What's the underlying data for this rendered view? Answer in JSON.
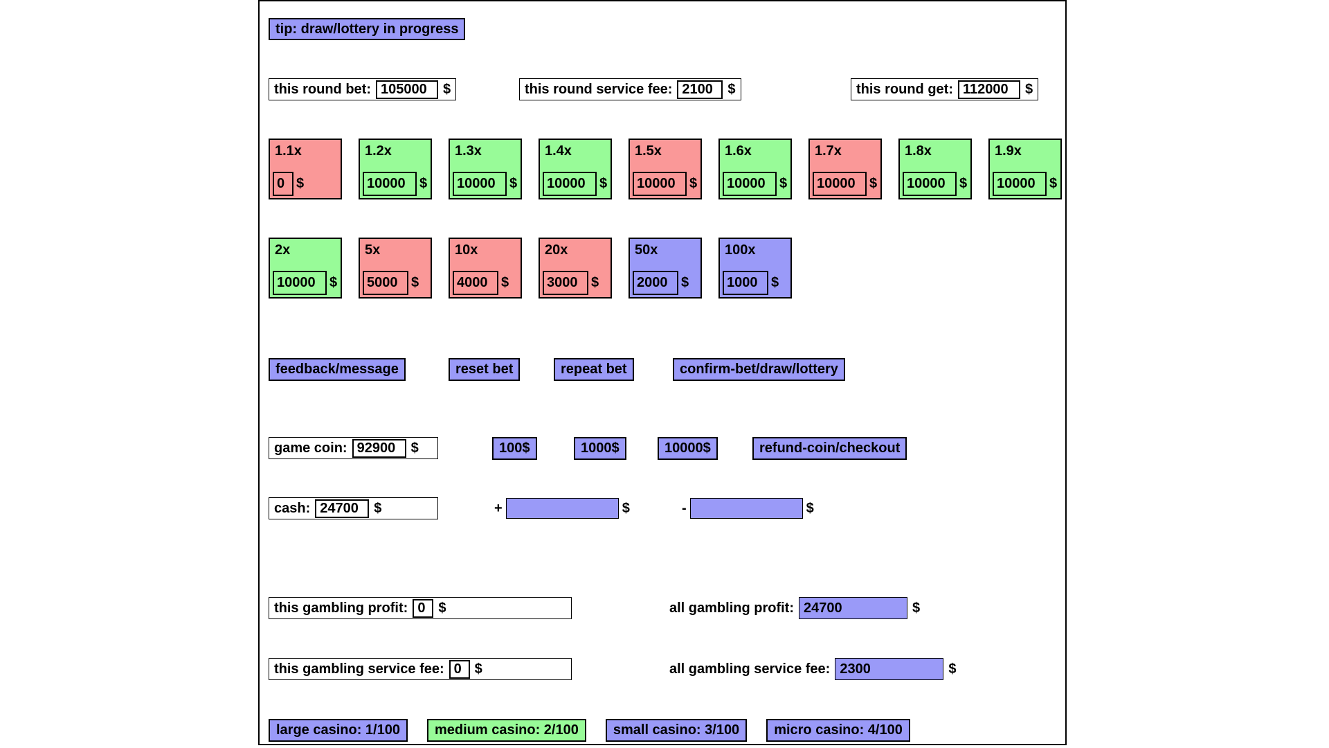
{
  "colors": {
    "purple": "#9a9af8",
    "green": "#98fb98",
    "red": "#fa9898"
  },
  "tip": {
    "label": "tip: draw/lottery in progress"
  },
  "round_info": [
    {
      "label": "this round bet:",
      "value": "105000",
      "currency": "$"
    },
    {
      "label": "this round service fee:",
      "value": "2100",
      "currency": "$"
    },
    {
      "label": "this round get:",
      "value": "112000",
      "currency": "$"
    }
  ],
  "bet_tiles_row1": [
    {
      "label": "1.1x",
      "value": "0",
      "currency": "$",
      "color": "red"
    },
    {
      "label": "1.2x",
      "value": "10000",
      "currency": "$",
      "color": "green"
    },
    {
      "label": "1.3x",
      "value": "10000",
      "currency": "$",
      "color": "green"
    },
    {
      "label": "1.4x",
      "value": "10000",
      "currency": "$",
      "color": "green"
    },
    {
      "label": "1.5x",
      "value": "10000",
      "currency": "$",
      "color": "red"
    },
    {
      "label": "1.6x",
      "value": "10000",
      "currency": "$",
      "color": "green"
    },
    {
      "label": "1.7x",
      "value": "10000",
      "currency": "$",
      "color": "red"
    },
    {
      "label": "1.8x",
      "value": "10000",
      "currency": "$",
      "color": "green"
    },
    {
      "label": "1.9x",
      "value": "10000",
      "currency": "$",
      "color": "green"
    }
  ],
  "bet_tiles_row2": [
    {
      "label": "2x",
      "value": "10000",
      "currency": "$",
      "color": "green"
    },
    {
      "label": "5x",
      "value": "5000",
      "currency": "$",
      "color": "red"
    },
    {
      "label": "10x",
      "value": "4000",
      "currency": "$",
      "color": "red"
    },
    {
      "label": "20x",
      "value": "3000",
      "currency": "$",
      "color": "red"
    },
    {
      "label": "50x",
      "value": "2000",
      "currency": "$",
      "color": "purple"
    },
    {
      "label": "100x",
      "value": "1000",
      "currency": "$",
      "color": "purple"
    }
  ],
  "actions": {
    "feedback": "feedback/message",
    "reset": "reset bet",
    "repeat": "repeat bet",
    "confirm": "confirm-bet/draw/lottery"
  },
  "game_coin": {
    "label": "game coin:",
    "value": "92900",
    "currency": "$",
    "add_buttons": [
      "100$",
      "1000$",
      "10000$"
    ],
    "refund_label": "refund-coin/checkout"
  },
  "cash": {
    "label": "cash:",
    "value": "24700",
    "currency": "$",
    "plus_sign": "+",
    "plus_value": "",
    "plus_currency": "$",
    "minus_sign": "-",
    "minus_value": "",
    "minus_currency": "$"
  },
  "gambling": {
    "this_profit_label": "this gambling profit:",
    "this_profit_value": "0",
    "this_profit_currency": "$",
    "all_profit_label": "all gambling profit:",
    "all_profit_value": "24700",
    "all_profit_currency": "$",
    "this_fee_label": "this gambling service fee:",
    "this_fee_value": "0",
    "this_fee_currency": "$",
    "all_fee_label": "all gambling service fee:",
    "all_fee_value": "2300",
    "all_fee_currency": "$"
  },
  "casinos": [
    {
      "label": "large casino: 1/100",
      "color": "purple"
    },
    {
      "label": "medium casino: 2/100",
      "color": "green"
    },
    {
      "label": "small casino: 3/100",
      "color": "purple"
    },
    {
      "label": "micro casino: 4/100",
      "color": "purple"
    }
  ]
}
